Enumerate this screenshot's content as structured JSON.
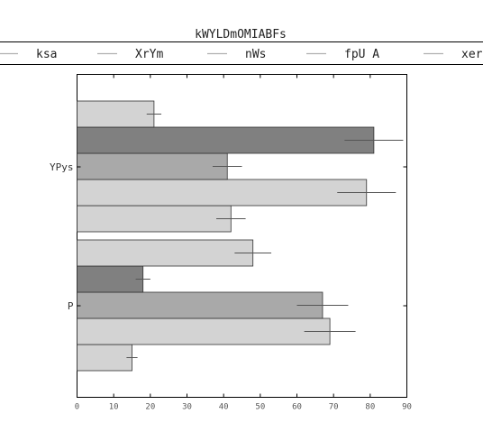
{
  "chart_data": {
    "type": "bar",
    "orientation": "horizontal",
    "title": "kWYLDmOMIABFs",
    "xlabel": "",
    "ylabel": "",
    "categories": [
      "YPys",
      "P"
    ],
    "xlim": [
      0,
      90
    ],
    "xticks": [
      0,
      10,
      20,
      30,
      40,
      50,
      60,
      70,
      80,
      90
    ],
    "grid": false,
    "legend_position": "top",
    "series": [
      {
        "name": "ksa",
        "values": [
          42,
          15
        ],
        "errors": [
          4,
          1.5
        ],
        "color": "#d3d3d3"
      },
      {
        "name": "XrYm",
        "values": [
          79,
          69
        ],
        "errors": [
          8,
          7
        ],
        "color": "#d3d3d3"
      },
      {
        "name": "nWs",
        "values": [
          41,
          67
        ],
        "errors": [
          4,
          7
        ],
        "color": "#a9a9a9"
      },
      {
        "name": "fpU A",
        "values": [
          81,
          18
        ],
        "errors": [
          8,
          2
        ],
        "color": "#808080"
      },
      {
        "name": "xer",
        "values": [
          21,
          48
        ],
        "errors": [
          2,
          5
        ],
        "color": "#d3d3d3"
      }
    ]
  }
}
